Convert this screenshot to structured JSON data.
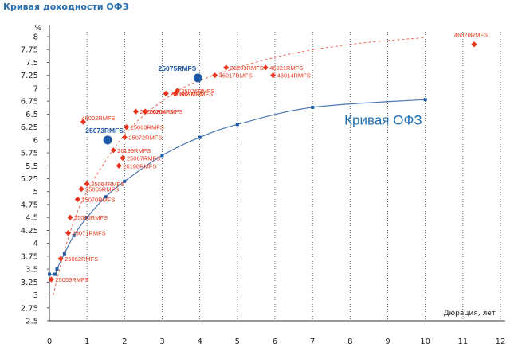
{
  "chart_data": {
    "type": "scatter",
    "title": "Кривая доходности ОФЗ",
    "ylabel_unit": "%",
    "xlabel": "Дюрация, лет",
    "xlim": [
      0,
      12
    ],
    "ylim": [
      2.5,
      8
    ],
    "x_ticks": [
      "0",
      "1",
      "2",
      "3",
      "4",
      "5",
      "6",
      "7",
      "8",
      "9",
      "10",
      "11",
      "12"
    ],
    "y_ticks": [
      "2.5",
      "2.75",
      "3",
      "3.25",
      "3.5",
      "3.75",
      "4",
      "4.25",
      "4.5",
      "4.75",
      "5",
      "5.25",
      "5.5",
      "5.75",
      "6",
      "6.25",
      "6.5",
      "6.75",
      "7",
      "7.25",
      "7.5",
      "7.75",
      "8"
    ],
    "grid": "vertical dotted",
    "curve_label": "Кривая ОФЗ",
    "colors": {
      "bonds": "#e8351b",
      "curve": "#4b77b5",
      "highlight": "#1f5aa6",
      "title": "#2a6fb0"
    },
    "series": [
      {
        "name": "Кривая ОФЗ",
        "style": "line-markers",
        "points": [
          {
            "x": 0.0,
            "y": 3.4
          },
          {
            "x": 0.15,
            "y": 3.4
          },
          {
            "x": 0.2,
            "y": 3.5
          },
          {
            "x": 0.4,
            "y": 3.8
          },
          {
            "x": 0.65,
            "y": 4.15
          },
          {
            "x": 1.0,
            "y": 4.5
          },
          {
            "x": 1.5,
            "y": 4.9
          },
          {
            "x": 2.0,
            "y": 5.2
          },
          {
            "x": 3.0,
            "y": 5.7
          },
          {
            "x": 4.0,
            "y": 6.05
          },
          {
            "x": 5.0,
            "y": 6.3
          },
          {
            "x": 7.0,
            "y": 6.63
          },
          {
            "x": 10.0,
            "y": 6.78
          }
        ]
      },
      {
        "style": "diamonds",
        "points": [
          {
            "x": 0.05,
            "y": 3.3,
            "label": "25059RMFS"
          },
          {
            "x": 0.3,
            "y": 3.7,
            "label": "25062RMFS"
          },
          {
            "x": 0.5,
            "y": 4.2,
            "label": "25071RMFS"
          },
          {
            "x": 0.55,
            "y": 4.5,
            "label": "25066RMFS"
          },
          {
            "x": 0.75,
            "y": 4.85,
            "label": "25070RMFS"
          },
          {
            "x": 0.85,
            "y": 5.05,
            "label": "25065RMFS"
          },
          {
            "x": 1.0,
            "y": 5.15,
            "label": "25064RMFS"
          },
          {
            "x": 1.7,
            "y": 5.8,
            "label": "26199RMFS"
          },
          {
            "x": 1.85,
            "y": 5.5,
            "label": "26198RMFS"
          },
          {
            "x": 1.95,
            "y": 5.65,
            "label": "25067RMFS"
          },
          {
            "x": 2.0,
            "y": 6.05,
            "label": "25072RMFS"
          },
          {
            "x": 2.05,
            "y": 6.25,
            "label": "25063RMFS"
          },
          {
            "x": 2.3,
            "y": 6.55,
            "label": "26200RMFS"
          },
          {
            "x": 2.55,
            "y": 6.55,
            "label": "26204RMFS"
          },
          {
            "x": 3.1,
            "y": 6.9,
            "label": "25068RMFS"
          },
          {
            "x": 3.35,
            "y": 6.9,
            "label": "26202RMFS"
          },
          {
            "x": 3.4,
            "y": 6.95,
            "label": "25076RMFS"
          },
          {
            "x": 4.4,
            "y": 7.25,
            "label": "46017RMFS"
          },
          {
            "x": 4.7,
            "y": 7.4,
            "label": "26203RMFS"
          },
          {
            "x": 5.75,
            "y": 7.4,
            "label": "46021RMFS"
          },
          {
            "x": 5.95,
            "y": 7.25,
            "label": "46014RMFS"
          },
          {
            "x": 0.9,
            "y": 6.35,
            "label": "46002RMFS"
          },
          {
            "x": 11.3,
            "y": 7.85,
            "label": "46020RMFS"
          }
        ]
      },
      {
        "style": "large-dots",
        "points": [
          {
            "x": 1.55,
            "y": 6.0,
            "label": "25073RMFS"
          },
          {
            "x": 3.95,
            "y": 7.2,
            "label": "25075RMFS"
          }
        ]
      }
    ],
    "trend": {
      "style": "dashed",
      "points": [
        {
          "x": 0.1,
          "y": 3.0
        },
        {
          "x": 0.5,
          "y": 4.1
        },
        {
          "x": 1.0,
          "y": 5.0
        },
        {
          "x": 2.0,
          "y": 6.1
        },
        {
          "x": 3.0,
          "y": 6.75
        },
        {
          "x": 4.0,
          "y": 7.15
        },
        {
          "x": 6.0,
          "y": 7.6
        },
        {
          "x": 8.0,
          "y": 7.85
        },
        {
          "x": 10.0,
          "y": 7.98
        }
      ]
    }
  }
}
